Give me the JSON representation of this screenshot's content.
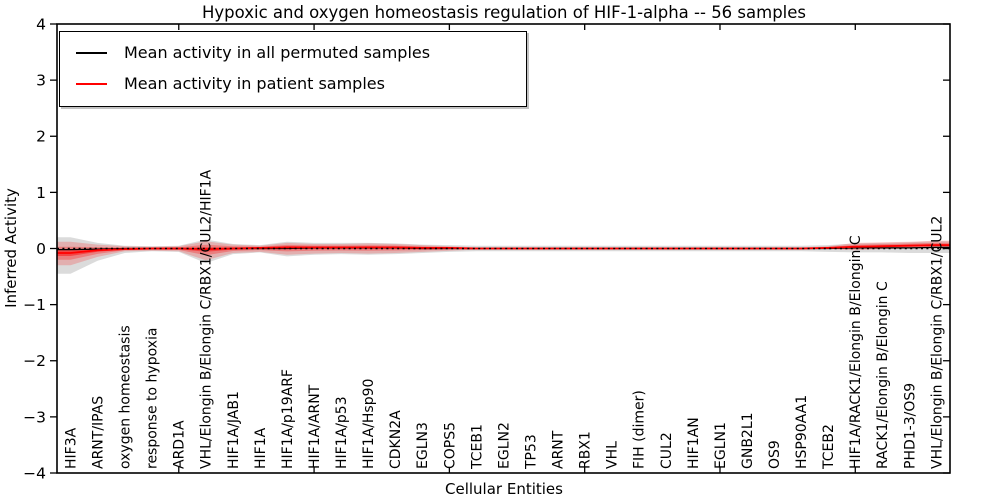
{
  "figure": {
    "title": "Hypoxic and oxygen homeostasis regulation of HIF-1-alpha -- 56 samples",
    "background_color": "#ffffff",
    "frame_color": "#000000"
  },
  "chart_data": {
    "type": "line",
    "title": "Hypoxic and oxygen homeostasis regulation of HIF-1-alpha -- 56 samples",
    "xlabel": "Cellular Entities",
    "ylabel": "Inferred Activity",
    "ylim": [
      -4,
      4
    ],
    "yticks": [
      -4,
      -3,
      -2,
      -1,
      0,
      1,
      2,
      3,
      4
    ],
    "grid": false,
    "legend_position": "upper left",
    "zero_line": 0,
    "categories": [
      "HIF3A",
      "ARNT/IPAS",
      "oxygen homeostasis",
      "response to hypoxia",
      "ARD1A",
      "VHL/Elongin B/Elongin C/RBX1/CUL2/HIF1A",
      "HIF1A/JAB1",
      "HIF1A",
      "HIF1A/p19ARF",
      "HIF1A/ARNT",
      "HIF1A/p53",
      "HIF1A/Hsp90",
      "CDKN2A",
      "EGLN3",
      "COPS5",
      "TCEB1",
      "EGLN2",
      "TP53",
      "ARNT",
      "RBX1",
      "VHL",
      "FIH (dimer)",
      "CUL2",
      "HIF1AN",
      "EGLN1",
      "GNB2L1",
      "OS9",
      "HSP90AA1",
      "TCEB2",
      "HIF1A/RACK1/Elongin B/Elongin C",
      "RACK1/Elongin B/Elongin C",
      "PHD1-3/OS9",
      "VHL/Elongin B/Elongin C/RBX1/CUL2"
    ],
    "series": [
      {
        "name": "Mean activity in all permuted samples",
        "color": "#000000",
        "style": "solid",
        "values": [
          -0.02,
          -0.01,
          0,
          0,
          0,
          -0.01,
          0,
          0,
          0,
          0.01,
          0.01,
          0.01,
          0.01,
          0,
          0,
          0,
          0,
          0,
          0,
          0,
          0,
          0,
          0,
          0,
          0,
          0,
          0,
          0,
          0,
          0.01,
          0.01,
          0.01,
          0.02
        ]
      },
      {
        "name": "Mean activity in patient samples",
        "color": "#ff0000",
        "style": "solid",
        "values": [
          -0.08,
          -0.03,
          -0.01,
          0,
          0,
          -0.01,
          0,
          0.01,
          0.02,
          0.02,
          0.02,
          0.02,
          0.02,
          0.01,
          0.01,
          0,
          0,
          0,
          0,
          0,
          0,
          0,
          0,
          0,
          0,
          0,
          0,
          0,
          0.01,
          0.03,
          0.04,
          0.05,
          0.06
        ]
      }
    ],
    "bands": [
      {
        "name": "permuted samples spread",
        "color": "#bdbdbd",
        "opacity": 0.55,
        "hi": [
          0.2,
          0.1,
          0.05,
          0.04,
          0.05,
          0.16,
          0.08,
          0.06,
          0.12,
          0.1,
          0.1,
          0.1,
          0.09,
          0.07,
          0.06,
          0.05,
          0.05,
          0.05,
          0.05,
          0.05,
          0.05,
          0.05,
          0.05,
          0.05,
          0.05,
          0.05,
          0.05,
          0.05,
          0.06,
          0.09,
          0.1,
          0.11,
          0.13
        ],
        "lo": [
          -0.45,
          -0.22,
          -0.08,
          -0.05,
          -0.06,
          -0.26,
          -0.1,
          -0.07,
          -0.14,
          -0.11,
          -0.1,
          -0.11,
          -0.1,
          -0.08,
          -0.06,
          -0.05,
          -0.05,
          -0.05,
          -0.05,
          -0.05,
          -0.05,
          -0.05,
          -0.05,
          -0.05,
          -0.05,
          -0.05,
          -0.05,
          -0.05,
          -0.06,
          -0.07,
          -0.07,
          -0.08,
          -0.08
        ]
      },
      {
        "name": "patient samples spread",
        "color": "#ff0000",
        "opacity": 0.2,
        "hi": [
          0.12,
          0.07,
          0.04,
          0.03,
          0.04,
          0.13,
          0.07,
          0.05,
          0.1,
          0.08,
          0.08,
          0.09,
          0.08,
          0.06,
          0.04,
          0.02,
          0.02,
          0.02,
          0.02,
          0.02,
          0.02,
          0.02,
          0.02,
          0.02,
          0.02,
          0.02,
          0.02,
          0.02,
          0.04,
          0.1,
          0.11,
          0.12,
          0.14
        ],
        "lo": [
          -0.3,
          -0.15,
          -0.05,
          -0.04,
          -0.05,
          -0.21,
          -0.08,
          -0.06,
          -0.11,
          -0.09,
          -0.08,
          -0.09,
          -0.08,
          -0.06,
          -0.04,
          -0.02,
          -0.02,
          -0.02,
          -0.02,
          -0.02,
          -0.02,
          -0.02,
          -0.02,
          -0.02,
          -0.02,
          -0.02,
          -0.02,
          -0.02,
          -0.01,
          -0.03,
          -0.01,
          0.0,
          0.0
        ]
      }
    ]
  }
}
